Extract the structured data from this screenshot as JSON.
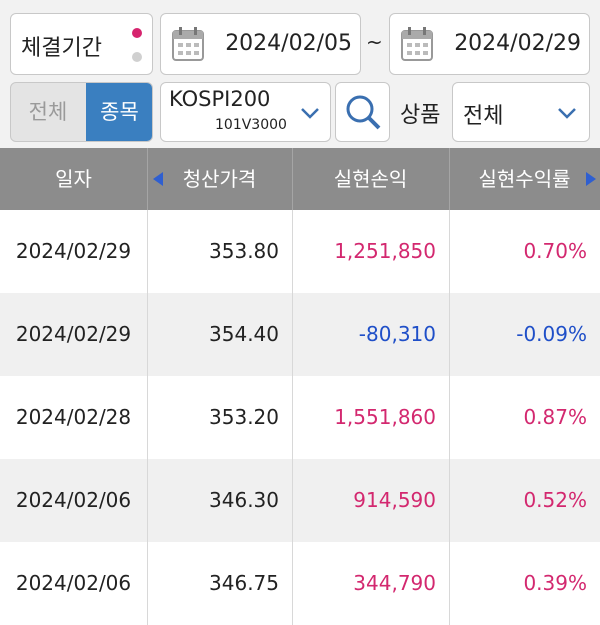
{
  "filter": {
    "period_label": "체결기간",
    "start_date": "2024/02/05",
    "separator": "~",
    "end_date": "2024/02/29",
    "toggle": [
      "전체",
      "종목"
    ],
    "product_name": "KOSPI200",
    "product_code": "101V3000",
    "category_label": "상품",
    "category_value": "전체"
  },
  "table": {
    "headers": [
      "일자",
      "청산가격",
      "실현손익",
      "실현수익률"
    ],
    "rows": [
      [
        "2024/02/29",
        "353.80",
        "1,251,850",
        "0.70%"
      ],
      [
        "2024/02/29",
        "354.40",
        "-80,310",
        "-0.09%"
      ],
      [
        "2024/02/28",
        "353.20",
        "1,551,860",
        "0.87%"
      ],
      [
        "2024/02/06",
        "346.30",
        "914,590",
        "0.52%"
      ],
      [
        "2024/02/06",
        "346.75",
        "344,790",
        "0.39%"
      ]
    ]
  }
}
